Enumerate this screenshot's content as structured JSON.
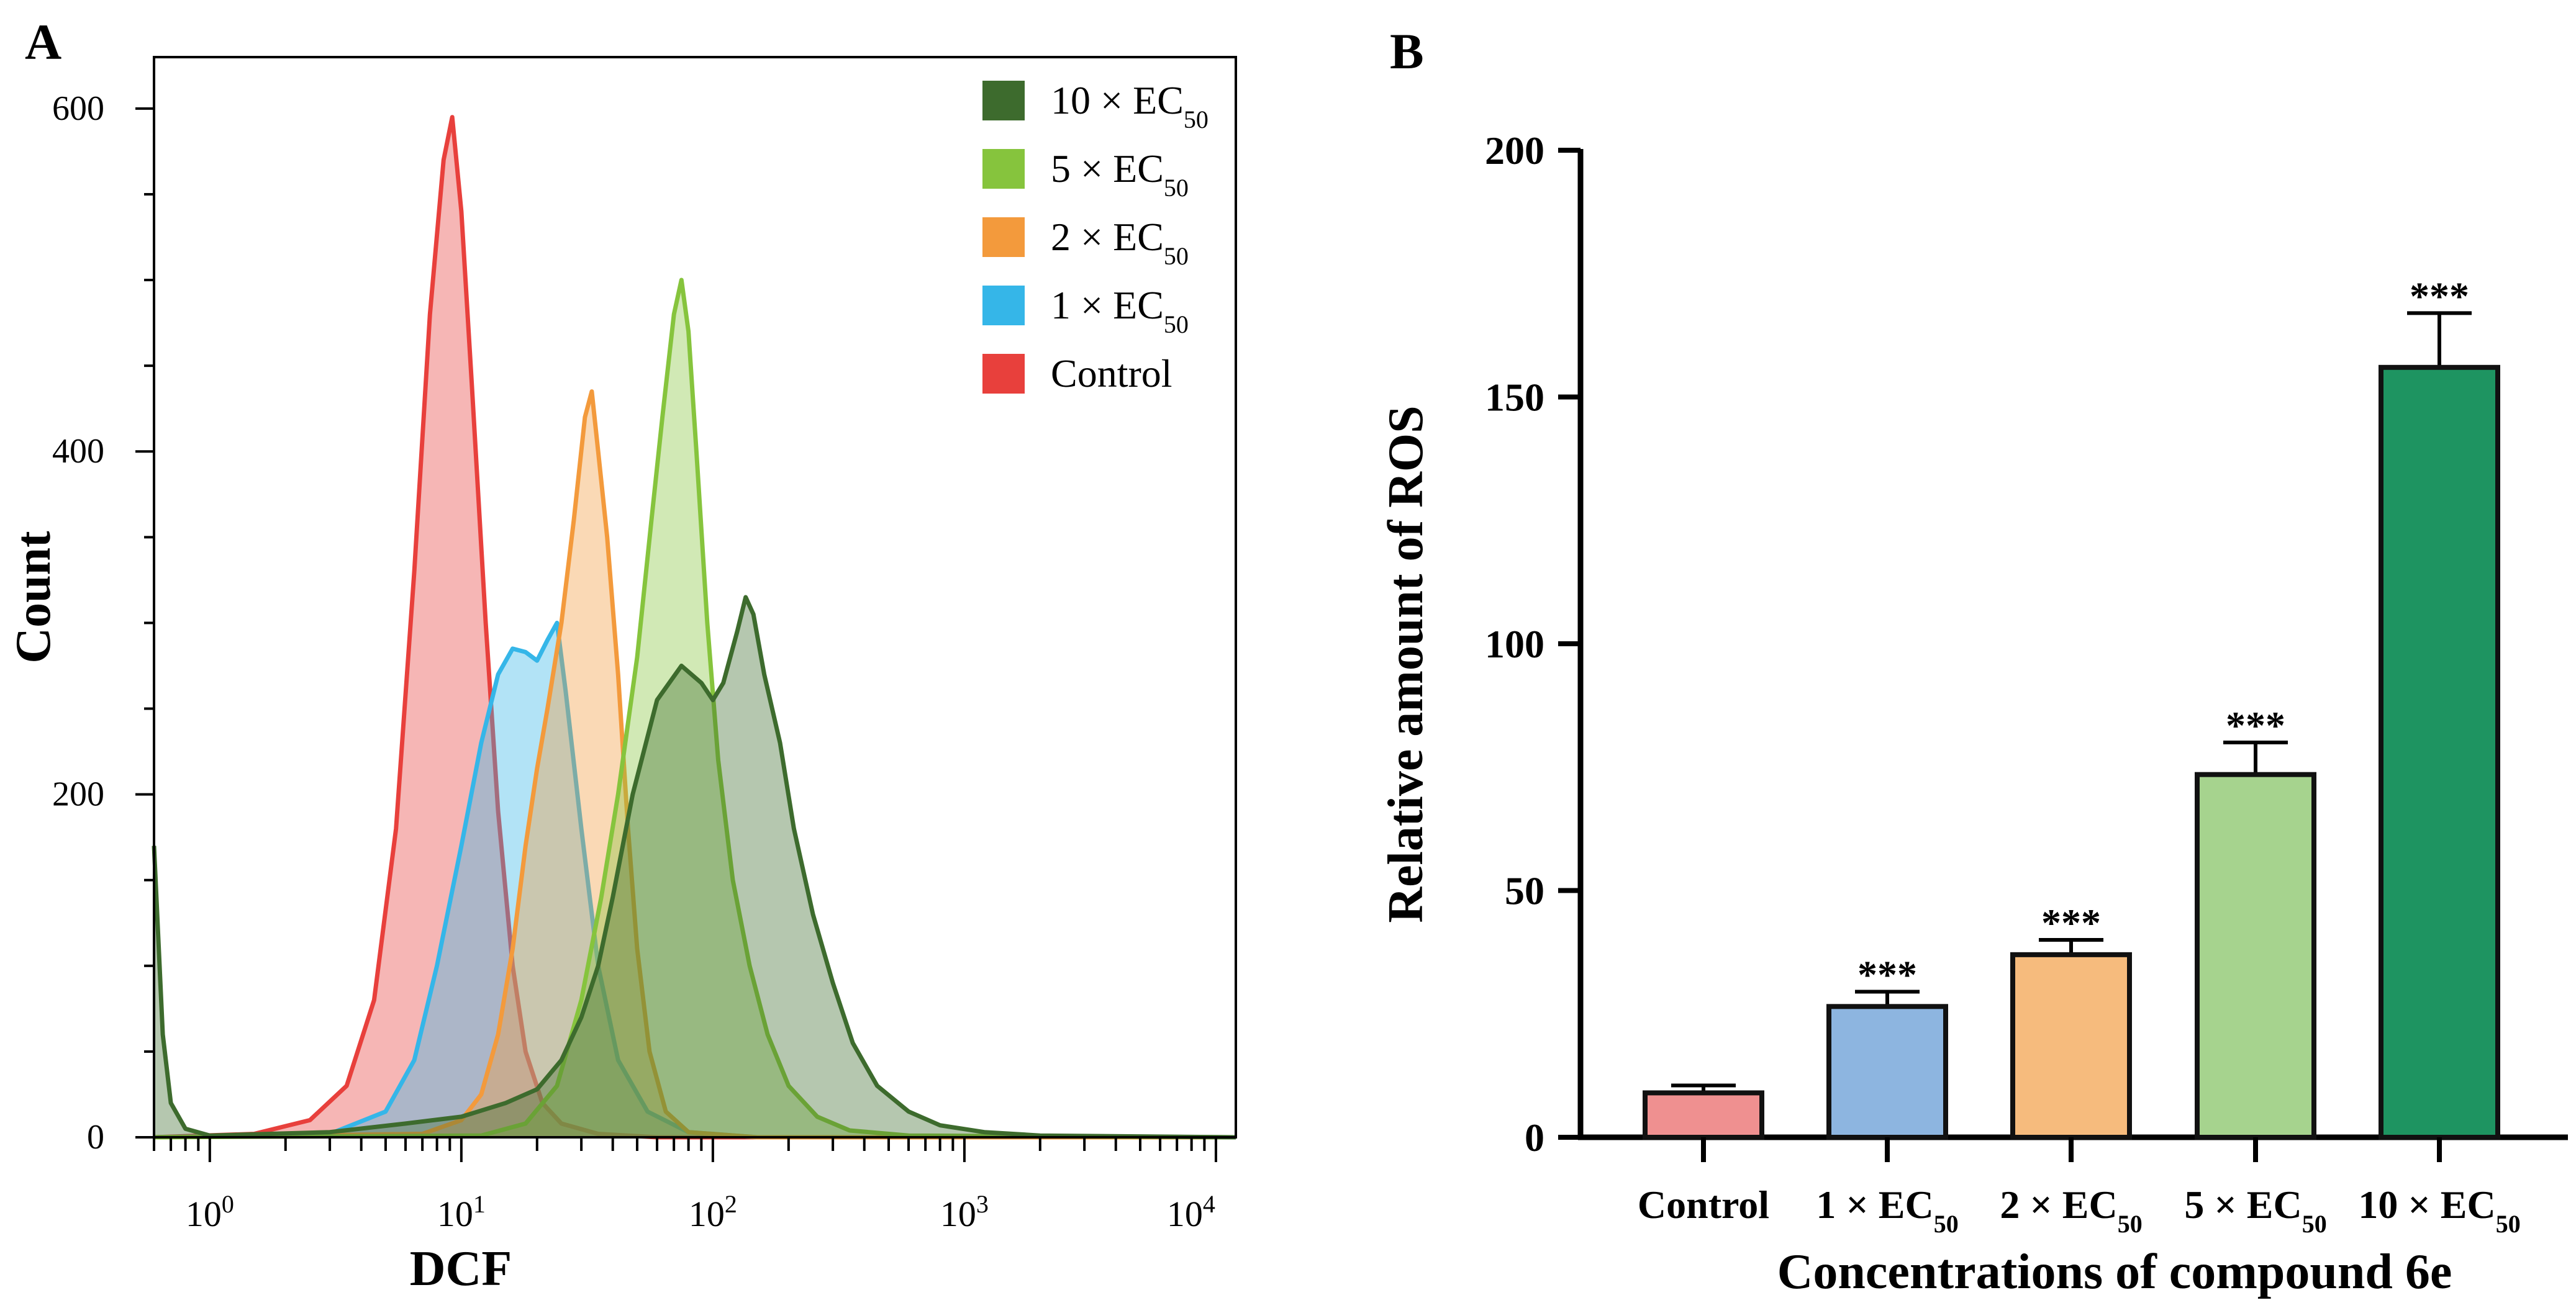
{
  "chart_data": [
    {
      "panel": "A",
      "type": "area",
      "xlabel": "DCF",
      "ylabel": "Count",
      "xscale": "log",
      "xlim": [
        0.6,
        12000
      ],
      "ylim": [
        0,
        630
      ],
      "x_ticks": [
        {
          "base": "10",
          "exp": "0",
          "value": 1
        },
        {
          "base": "10",
          "exp": "1",
          "value": 10
        },
        {
          "base": "10",
          "exp": "2",
          "value": 100
        },
        {
          "base": "10",
          "exp": "3",
          "value": 1000
        },
        {
          "base": "10",
          "exp": "4",
          "value": 10000
        }
      ],
      "y_ticks": [
        0,
        200,
        400,
        600
      ],
      "legend_position": "top-right",
      "series": [
        {
          "name": "Control",
          "legend_main": "Control",
          "legend_sub": "",
          "color": "#e8403c",
          "points": [
            [
              0.6,
              0
            ],
            [
              1.5,
              2
            ],
            [
              2.5,
              10
            ],
            [
              3.5,
              30
            ],
            [
              4.5,
              80
            ],
            [
              5.5,
              180
            ],
            [
              6.5,
              330
            ],
            [
              7.5,
              480
            ],
            [
              8.5,
              570
            ],
            [
              9.2,
              595
            ],
            [
              10,
              540
            ],
            [
              11,
              440
            ],
            [
              12.5,
              300
            ],
            [
              14,
              190
            ],
            [
              16,
              100
            ],
            [
              18,
              50
            ],
            [
              21,
              20
            ],
            [
              25,
              8
            ],
            [
              35,
              2
            ],
            [
              60,
              0
            ],
            [
              12000,
              0
            ]
          ]
        },
        {
          "name": "1 × EC50",
          "legend_main": "1 × EC",
          "legend_sub": "50",
          "color": "#35b6e8",
          "points": [
            [
              0.6,
              0
            ],
            [
              3,
              2
            ],
            [
              5,
              15
            ],
            [
              6.5,
              45
            ],
            [
              8,
              100
            ],
            [
              10,
              170
            ],
            [
              12,
              230
            ],
            [
              14,
              270
            ],
            [
              16,
              285
            ],
            [
              18,
              283
            ],
            [
              20,
              278
            ],
            [
              22,
              290
            ],
            [
              24,
              300
            ],
            [
              26,
              260
            ],
            [
              30,
              180
            ],
            [
              35,
              100
            ],
            [
              42,
              45
            ],
            [
              55,
              15
            ],
            [
              80,
              3
            ],
            [
              150,
              0
            ],
            [
              12000,
              0
            ]
          ]
        },
        {
          "name": "2 × EC50",
          "legend_main": "2 × EC",
          "legend_sub": "50",
          "color": "#f39a3c",
          "points": [
            [
              0.6,
              0
            ],
            [
              7,
              2
            ],
            [
              10,
              10
            ],
            [
              12,
              25
            ],
            [
              14,
              60
            ],
            [
              16,
              110
            ],
            [
              18,
              170
            ],
            [
              20,
              215
            ],
            [
              22,
              250
            ],
            [
              25,
              300
            ],
            [
              28,
              360
            ],
            [
              31,
              420
            ],
            [
              33,
              435
            ],
            [
              35,
              400
            ],
            [
              38,
              350
            ],
            [
              42,
              270
            ],
            [
              46,
              180
            ],
            [
              50,
              110
            ],
            [
              56,
              50
            ],
            [
              65,
              15
            ],
            [
              80,
              3
            ],
            [
              150,
              0
            ],
            [
              12000,
              0
            ]
          ]
        },
        {
          "name": "5 × EC50",
          "legend_main": "5 × EC",
          "legend_sub": "50",
          "color": "#86c43d",
          "points": [
            [
              0.6,
              0
            ],
            [
              12,
              1
            ],
            [
              18,
              8
            ],
            [
              24,
              30
            ],
            [
              30,
              80
            ],
            [
              36,
              140
            ],
            [
              42,
              200
            ],
            [
              50,
              280
            ],
            [
              57,
              360
            ],
            [
              63,
              420
            ],
            [
              70,
              480
            ],
            [
              75,
              500
            ],
            [
              80,
              470
            ],
            [
              86,
              400
            ],
            [
              95,
              300
            ],
            [
              105,
              220
            ],
            [
              120,
              150
            ],
            [
              140,
              100
            ],
            [
              165,
              60
            ],
            [
              200,
              30
            ],
            [
              260,
              12
            ],
            [
              350,
              4
            ],
            [
              600,
              1
            ],
            [
              12000,
              0
            ]
          ]
        },
        {
          "name": "10 × EC50",
          "legend_main": "10 × EC",
          "legend_sub": "50",
          "color": "#3d6b2d",
          "points": [
            [
              0.6,
              170
            ],
            [
              0.65,
              60
            ],
            [
              0.7,
              20
            ],
            [
              0.8,
              5
            ],
            [
              1,
              1
            ],
            [
              3,
              3
            ],
            [
              6,
              8
            ],
            [
              10,
              12
            ],
            [
              15,
              20
            ],
            [
              20,
              28
            ],
            [
              25,
              45
            ],
            [
              30,
              70
            ],
            [
              35,
              100
            ],
            [
              40,
              140
            ],
            [
              48,
              200
            ],
            [
              60,
              255
            ],
            [
              75,
              275
            ],
            [
              90,
              265
            ],
            [
              100,
              255
            ],
            [
              110,
              265
            ],
            [
              125,
              295
            ],
            [
              135,
              315
            ],
            [
              145,
              305
            ],
            [
              160,
              270
            ],
            [
              185,
              230
            ],
            [
              210,
              180
            ],
            [
              250,
              130
            ],
            [
              300,
              90
            ],
            [
              360,
              55
            ],
            [
              450,
              30
            ],
            [
              600,
              15
            ],
            [
              800,
              7
            ],
            [
              1200,
              3
            ],
            [
              2000,
              1
            ],
            [
              12000,
              0
            ]
          ]
        }
      ]
    },
    {
      "panel": "B",
      "type": "bar",
      "xlabel": "Concentrations of compound 6e",
      "ylabel": "Relative amount of ROS",
      "ylim": [
        0,
        200
      ],
      "y_ticks": [
        0,
        50,
        100,
        150,
        200
      ],
      "categories": [
        {
          "main": "Control",
          "sub": ""
        },
        {
          "main": "1 × EC",
          "sub": "50"
        },
        {
          "main": "2 × EC",
          "sub": "50"
        },
        {
          "main": "5 × EC",
          "sub": "50"
        },
        {
          "main": "10 × EC",
          "sub": "50"
        }
      ],
      "values": [
        9,
        26.5,
        37,
        73.5,
        156
      ],
      "errors": [
        1.5,
        3,
        3,
        6.5,
        11
      ],
      "annotations": [
        "",
        "***",
        "***",
        "***",
        "***"
      ],
      "colors": [
        "#ef9090",
        "#8db5e0",
        "#f6bb7d",
        "#a6d38e",
        "#1e9461"
      ]
    }
  ],
  "panel_labels": {
    "a": "A",
    "b": "B"
  }
}
